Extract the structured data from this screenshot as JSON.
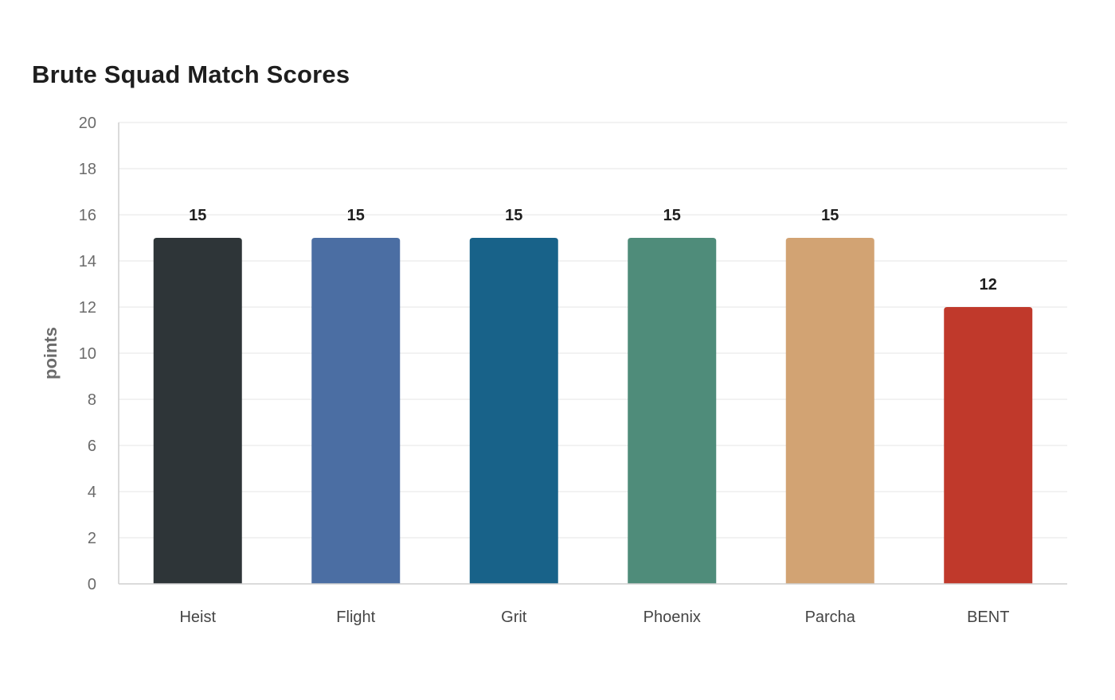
{
  "chart_data": {
    "type": "bar",
    "title": "Brute Squad Match Scores",
    "xlabel": "",
    "ylabel": "points",
    "ylim": [
      0,
      20
    ],
    "yticks": [
      0,
      2,
      4,
      6,
      8,
      10,
      12,
      14,
      16,
      18,
      20
    ],
    "grid": true,
    "legend": "none",
    "categories": [
      "Heist",
      "Flight",
      "Grit",
      "Phoenix",
      "Parcha",
      "BENT"
    ],
    "values": [
      15,
      15,
      15,
      15,
      15,
      12
    ],
    "colors": [
      "#2e3538",
      "#4b6ea3",
      "#186289",
      "#4f8c7a",
      "#d2a373",
      "#c0392b"
    ],
    "data_labels": [
      "15",
      "15",
      "15",
      "15",
      "15",
      "12"
    ]
  }
}
